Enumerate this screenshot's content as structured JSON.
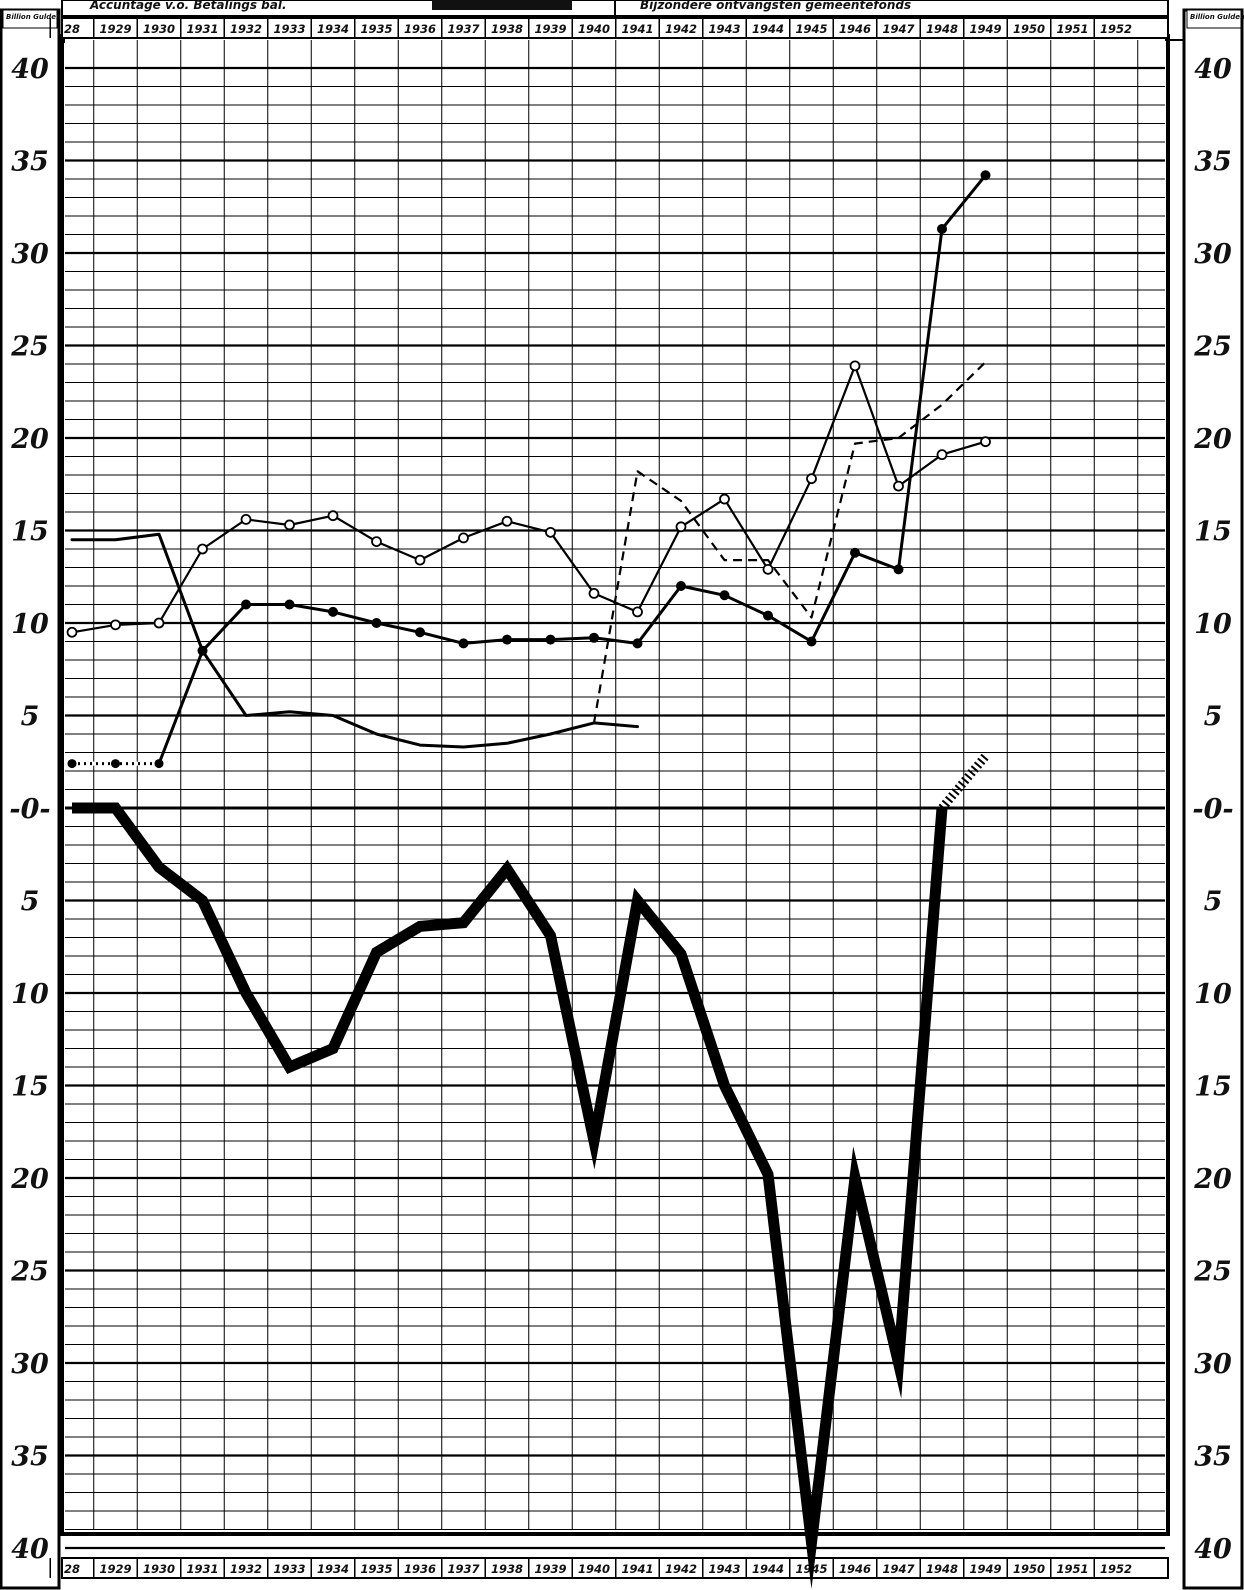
{
  "chart_data": {
    "type": "line",
    "unit_label": "Billion Gulden",
    "header": {
      "left_text": "Accuntage v.o. Betalings bal.",
      "right_text": "Bijzondere ontvangsten gemeentefonds"
    },
    "x_tick_labels": [
      "28",
      "1929",
      "1930",
      "1931",
      "1932",
      "1933",
      "1934",
      "1935",
      "1936",
      "1937",
      "1938",
      "1939",
      "1940",
      "1941",
      "1942",
      "1943",
      "1944",
      "1945",
      "1946",
      "1947",
      "1948",
      "1949",
      "1950",
      "1951",
      "1952"
    ],
    "y_tick_labels": [
      "40",
      "35",
      "30",
      "25",
      "20",
      "15",
      "10",
      "5",
      "0",
      "5",
      "10",
      "15",
      "20",
      "25",
      "30",
      "35",
      "40"
    ],
    "y_tick_values": [
      40,
      35,
      30,
      25,
      20,
      15,
      10,
      5,
      0,
      -5,
      -10,
      -15,
      -20,
      -25,
      -30,
      -35,
      -40
    ],
    "ylim": [
      -40,
      40
    ],
    "grid": true,
    "series": [
      {
        "style": "thin-solid",
        "x": [
          1928,
          1929,
          1930,
          1931,
          1932,
          1933,
          1934,
          1935,
          1936,
          1937,
          1938,
          1939,
          1940,
          1941
        ],
        "y": [
          14.5,
          14.5,
          14.8,
          8.5,
          5.0,
          5.2,
          5.0,
          4.0,
          3.4,
          3.3,
          3.5,
          4.0,
          4.6,
          4.4
        ]
      },
      {
        "style": "solid-open-circles",
        "x": [
          1928,
          1929,
          1930,
          1931,
          1932,
          1933,
          1934,
          1935,
          1936,
          1937,
          1938,
          1939,
          1940,
          1941,
          1942,
          1943,
          1944,
          1945,
          1946,
          1947,
          1948,
          1949
        ],
        "y": [
          9.5,
          9.9,
          10.0,
          14.0,
          15.6,
          15.3,
          15.8,
          14.4,
          13.4,
          14.6,
          15.5,
          14.9,
          11.6,
          10.6,
          15.2,
          16.7,
          12.9,
          17.8,
          23.9,
          17.4,
          19.1,
          19.8
        ]
      },
      {
        "style": "solid-filled-circles",
        "x": [
          1928,
          1929,
          1930,
          1931,
          1932,
          1933,
          1934,
          1935,
          1936,
          1937,
          1938,
          1939,
          1940,
          1941,
          1942,
          1943,
          1944,
          1945,
          1946,
          1947,
          1948,
          1949
        ],
        "y": [
          2.4,
          2.4,
          2.4,
          8.5,
          11.0,
          11.0,
          10.6,
          10.0,
          9.5,
          8.9,
          9.1,
          9.1,
          9.2,
          8.9,
          12.0,
          11.5,
          10.4,
          9.0,
          13.8,
          12.9,
          31.3,
          34.2
        ]
      },
      {
        "style": "dashed",
        "x": [
          1940,
          1941,
          1942,
          1943,
          1944,
          1945,
          1946,
          1947,
          1948,
          1949
        ],
        "y": [
          4.6,
          18.2,
          16.6,
          13.4,
          13.4,
          10.3,
          19.7,
          20.0,
          21.8,
          24.1
        ]
      },
      {
        "style": "thick-solid",
        "x": [
          1928,
          1929,
          1930,
          1931,
          1932,
          1933,
          1934,
          1935,
          1936,
          1937,
          1938,
          1939,
          1940,
          1941,
          1942,
          1943,
          1944,
          1945,
          1946,
          1947,
          1948
        ],
        "y": [
          0,
          0,
          -3.2,
          -5.0,
          -10.0,
          -14.0,
          -13.0,
          -7.8,
          -6.4,
          -6.2,
          -3.3,
          -6.9,
          -18.0,
          -5.0,
          -7.9,
          -15.0,
          -19.8,
          -39.7,
          -20.0,
          -30.0,
          0
        ]
      },
      {
        "style": "hatched-extension",
        "x": [
          1948,
          1949
        ],
        "y": [
          0,
          2.8
        ]
      }
    ]
  }
}
